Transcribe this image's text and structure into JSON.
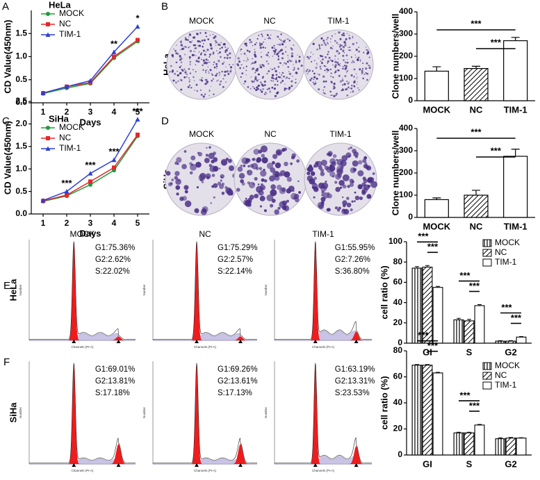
{
  "panel_labels": [
    "A",
    "B",
    "C",
    "D",
    "E",
    "F"
  ],
  "colony": {
    "columns": [
      "MOCK",
      "NC",
      "TIM-1"
    ],
    "rows": [
      "HeLa",
      "SiHa"
    ]
  },
  "flow": {
    "columns": [
      "MOCK",
      "NC",
      "TIM-1"
    ],
    "rows": [
      "HeLa",
      "SiHa"
    ],
    "stats": [
      [
        [
          "G1:75.36%",
          "G2:2.62%",
          "S:22.02%"
        ],
        [
          "G1:75.29%",
          "G2:2.57%",
          "S:22.14%"
        ],
        [
          "G1:55.95%",
          "G2:7.26%",
          "S:36.80%"
        ]
      ],
      [
        [
          "G1:69.01%",
          "G2:13.81%",
          "S:17.18%"
        ],
        [
          "G1:69.26%",
          "G2:13.61%",
          "S:17.13%"
        ],
        [
          "G1:63.19%",
          "G2:13.31%",
          "S:23.53%"
        ]
      ]
    ],
    "x_label": "Channels (PI-A)",
    "y_label": "Number"
  },
  "chart_data": [
    {
      "type": "line",
      "title": "HeLa",
      "x_label": "Days",
      "y_label": "CD Value(450nm)",
      "x": [
        1,
        2,
        3,
        4,
        5
      ],
      "xlim": [
        0.5,
        5.5
      ],
      "xticks": [
        1,
        2,
        3,
        4,
        5
      ],
      "ylim": [
        0,
        2.0
      ],
      "yticks": [
        {
          "value": 0,
          "label": "0.0"
        },
        0.5,
        {
          "value": 1,
          "label": "1.0"
        },
        1.5
      ],
      "series": [
        {
          "name": "MOCK",
          "color": "#1e9b3c",
          "marker": "circle",
          "values": [
            0.2,
            0.32,
            0.42,
            0.97,
            1.33
          ]
        },
        {
          "name": "NC",
          "color": "#e8262a",
          "marker": "square",
          "values": [
            0.21,
            0.35,
            0.44,
            1.0,
            1.36
          ]
        },
        {
          "name": "TIM-1",
          "color": "#2a3fd6",
          "marker": "triangle",
          "values": [
            0.21,
            0.35,
            0.48,
            1.1,
            1.65
          ]
        }
      ],
      "annotations": [
        {
          "x": 4,
          "text": "**"
        },
        {
          "x": 5,
          "text": "*"
        }
      ]
    },
    {
      "type": "line",
      "title": "SiHa",
      "x_label": "Days",
      "y_label": "CD Value(450nm)",
      "x": [
        1,
        2,
        3,
        4,
        5
      ],
      "xlim": [
        0.5,
        5.5
      ],
      "xticks": [
        1,
        2,
        3,
        4,
        5
      ],
      "ylim": [
        0,
        2.5
      ],
      "yticks": [
        {
          "value": 0,
          "label": "0.0"
        },
        0.5,
        {
          "value": 1,
          "label": "1.0"
        },
        1.5,
        {
          "value": 2,
          "label": "2.0"
        },
        2.5
      ],
      "series": [
        {
          "name": "MOCK",
          "color": "#1e9b3c",
          "marker": "circle",
          "values": [
            0.28,
            0.4,
            0.65,
            0.97,
            1.73
          ]
        },
        {
          "name": "NC",
          "color": "#e8262a",
          "marker": "square",
          "values": [
            0.29,
            0.42,
            0.72,
            1.03,
            1.76
          ]
        },
        {
          "name": "TIM-1",
          "color": "#2a3fd6",
          "marker": "triangle",
          "values": [
            0.3,
            0.5,
            0.9,
            1.2,
            2.1
          ]
        }
      ],
      "annotations": [
        {
          "x": 2,
          "text": "***"
        },
        {
          "x": 3,
          "text": "***"
        },
        {
          "x": 4,
          "text": "***"
        },
        {
          "x": 5,
          "text": "***"
        }
      ]
    },
    {
      "type": "bar",
      "y_label": "Clone numbers/well",
      "categories": [
        "MOCK",
        "NC",
        "TIM-1"
      ],
      "values": [
        133,
        145,
        270
      ],
      "errors": [
        20,
        10,
        15
      ],
      "patterns": [
        "none",
        "diagonal",
        "none"
      ],
      "ylim": [
        0,
        400
      ],
      "yticks": [
        0,
        100,
        200,
        300,
        400
      ],
      "brackets": [
        {
          "from": 0,
          "to": 2,
          "text": "***"
        },
        {
          "from": 1,
          "to": 2,
          "text": "***"
        }
      ]
    },
    {
      "type": "bar",
      "y_label": "Clone numbers/well",
      "categories": [
        "MOCK",
        "NC",
        "TIM-1"
      ],
      "values": [
        80,
        100,
        275
      ],
      "errors": [
        8,
        22,
        32
      ],
      "patterns": [
        "none",
        "diagonal",
        "none"
      ],
      "ylim": [
        0,
        400
      ],
      "yticks": [
        0,
        100,
        200,
        300,
        400
      ],
      "brackets": [
        {
          "from": 0,
          "to": 2,
          "text": "***"
        },
        {
          "from": 1,
          "to": 2,
          "text": "***"
        }
      ]
    },
    {
      "type": "grouped_bar",
      "y_label": "cell ratio (%)",
      "categories": [
        "GI",
        "S",
        "G2"
      ],
      "legend": "upper right",
      "series": [
        {
          "name": "MOCK",
          "pattern": "vertical",
          "values": [
            74,
            23,
            2
          ],
          "errors": [
            1.5,
            1.5,
            0.5
          ]
        },
        {
          "name": "NC",
          "pattern": "diagonal",
          "values": [
            75,
            22,
            2
          ],
          "errors": [
            1.5,
            1.5,
            0.5
          ]
        },
        {
          "name": "TIM-1",
          "pattern": "none",
          "values": [
            55,
            37,
            6
          ],
          "errors": [
            1,
            1,
            0.5
          ]
        }
      ],
      "ylim": [
        0,
        100
      ],
      "yticks": [
        0,
        20,
        40,
        60,
        80,
        100
      ],
      "brackets": [
        {
          "category": 0,
          "from": 0,
          "to": 2,
          "text": "***"
        },
        {
          "category": 0,
          "from": 1,
          "to": 2,
          "text": "***"
        },
        {
          "category": 1,
          "from": 0,
          "to": 2,
          "text": "***"
        },
        {
          "category": 1,
          "from": 1,
          "to": 2,
          "text": "***"
        },
        {
          "category": 2,
          "from": 0,
          "to": 2,
          "text": "***"
        },
        {
          "category": 2,
          "from": 1,
          "to": 2,
          "text": "***"
        }
      ]
    },
    {
      "type": "grouped_bar",
      "y_label": "cell ratio (%)",
      "categories": [
        "GI",
        "S",
        "G2"
      ],
      "legend": "upper right",
      "series": [
        {
          "name": "MOCK",
          "pattern": "vertical",
          "values": [
            69,
            17,
            12.5
          ],
          "errors": [
            0.5,
            0.5,
            0.8
          ]
        },
        {
          "name": "NC",
          "pattern": "diagonal",
          "values": [
            69,
            17,
            13
          ],
          "errors": [
            0.5,
            0.5,
            0.5
          ]
        },
        {
          "name": "TIM-1",
          "pattern": "none",
          "values": [
            63,
            23,
            13
          ],
          "errors": [
            0.5,
            0.5,
            0.3
          ]
        }
      ],
      "ylim": [
        0,
        80
      ],
      "yticks": [
        0,
        20,
        40,
        60,
        80
      ],
      "brackets": [
        {
          "category": 0,
          "from": 0,
          "to": 2,
          "text": "***"
        },
        {
          "category": 0,
          "from": 1,
          "to": 2,
          "text": "***"
        },
        {
          "category": 1,
          "from": 0,
          "to": 2,
          "text": "***"
        },
        {
          "category": 1,
          "from": 1,
          "to": 2,
          "text": "***"
        }
      ]
    }
  ]
}
